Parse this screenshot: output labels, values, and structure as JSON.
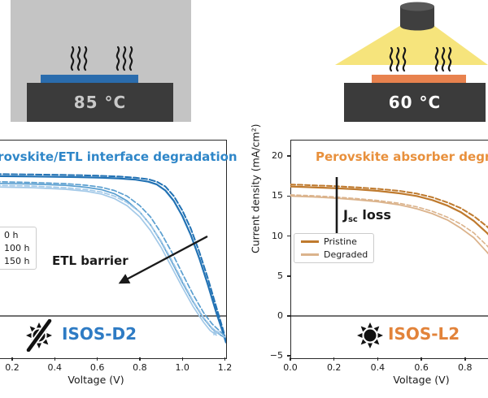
{
  "scene": {
    "heat_setup": {
      "temp": "85 °C",
      "panel_bg": "#c4c4c4",
      "block_color": "#3b3b3b",
      "cell_layer_color": "#2a6cad",
      "icon": "heat-waves-icon"
    },
    "light_setup": {
      "temp": "60 °C",
      "block_color": "#3b3b3b",
      "cell_layer_color": "#e8824e",
      "light_cone_color": "#f6e47c",
      "icons": [
        "lamp-icon",
        "heat-waves-icon"
      ]
    }
  },
  "chart_data": [
    {
      "type": "line",
      "title": "Perovskite/ETL interface degradation",
      "title_color": "#2e86c8",
      "xlabel": "Voltage (V)",
      "ylabel": "",
      "xtick_labels": [
        "0.2",
        "0.4",
        "0.6",
        "0.8",
        "1.0",
        "1.2"
      ],
      "xticks": [
        0.2,
        0.4,
        0.6,
        0.8,
        1.0,
        1.2
      ],
      "xlim_visible": [
        0.14,
        1.21
      ],
      "ylim": [
        -5,
        22
      ],
      "grid": false,
      "annotation": "ETL barrier",
      "badge": "ISOS-D2",
      "badge_icon": "crossed-sun-dark-storage-icon",
      "legend_position": "center left",
      "legend": [
        {
          "label": "0 h",
          "color": "#2272b4"
        },
        {
          "label": "100 h",
          "color": "#5b9fd0"
        },
        {
          "label": "150 h",
          "color": "#a3c9e8"
        }
      ],
      "series": [
        {
          "name": "0 h forward",
          "color": "#2272b4",
          "dash": "",
          "width": 2.2,
          "points": [
            [
              0.12,
              17.5
            ],
            [
              0.3,
              17.45
            ],
            [
              0.5,
              17.38
            ],
            [
              0.6,
              17.32
            ],
            [
              0.7,
              17.22
            ],
            [
              0.78,
              17.05
            ],
            [
              0.84,
              16.8
            ],
            [
              0.88,
              16.45
            ],
            [
              0.92,
              15.7
            ],
            [
              0.96,
              14.4
            ],
            [
              1.0,
              12.5
            ],
            [
              1.04,
              10.1
            ],
            [
              1.08,
              7.2
            ],
            [
              1.12,
              3.9
            ],
            [
              1.16,
              0.4
            ],
            [
              1.19,
              -2.0
            ],
            [
              1.205,
              -3.3
            ]
          ]
        },
        {
          "name": "0 h reverse",
          "color": "#2272b4",
          "dash": "7,3",
          "width": 2,
          "points": [
            [
              0.12,
              17.75
            ],
            [
              0.3,
              17.7
            ],
            [
              0.5,
              17.62
            ],
            [
              0.6,
              17.55
            ],
            [
              0.7,
              17.45
            ],
            [
              0.78,
              17.3
            ],
            [
              0.84,
              17.1
            ],
            [
              0.88,
              16.8
            ],
            [
              0.92,
              16.2
            ],
            [
              0.96,
              15.0
            ],
            [
              1.0,
              13.2
            ],
            [
              1.04,
              10.9
            ],
            [
              1.08,
              8.0
            ],
            [
              1.12,
              4.7
            ],
            [
              1.16,
              1.1
            ],
            [
              1.19,
              -1.6
            ],
            [
              1.205,
              -3.1
            ]
          ]
        },
        {
          "name": "100 h forward",
          "color": "#5b9fd0",
          "dash": "",
          "width": 1.7,
          "points": [
            [
              0.12,
              16.6
            ],
            [
              0.3,
              16.5
            ],
            [
              0.45,
              16.35
            ],
            [
              0.55,
              16.1
            ],
            [
              0.62,
              15.8
            ],
            [
              0.68,
              15.3
            ],
            [
              0.74,
              14.4
            ],
            [
              0.8,
              13.0
            ],
            [
              0.85,
              11.4
            ],
            [
              0.9,
              9.3
            ],
            [
              0.95,
              6.8
            ],
            [
              1.0,
              4.2
            ],
            [
              1.05,
              1.8
            ],
            [
              1.1,
              -0.3
            ],
            [
              1.14,
              -1.6
            ],
            [
              1.18,
              -2.4
            ],
            [
              1.2,
              -2.7
            ]
          ]
        },
        {
          "name": "100 h reverse",
          "color": "#5b9fd0",
          "dash": "6,3",
          "width": 1.7,
          "points": [
            [
              0.12,
              16.8
            ],
            [
              0.3,
              16.7
            ],
            [
              0.45,
              16.55
            ],
            [
              0.55,
              16.35
            ],
            [
              0.62,
              16.1
            ],
            [
              0.68,
              15.7
            ],
            [
              0.74,
              15.0
            ],
            [
              0.8,
              13.8
            ],
            [
              0.85,
              12.4
            ],
            [
              0.9,
              10.4
            ],
            [
              0.95,
              8.0
            ],
            [
              1.0,
              5.3
            ],
            [
              1.05,
              2.7
            ],
            [
              1.1,
              0.4
            ],
            [
              1.14,
              -1.0
            ],
            [
              1.18,
              -2.0
            ],
            [
              1.2,
              -2.5
            ]
          ]
        },
        {
          "name": "150 h forward",
          "color": "#a3c9e8",
          "dash": "",
          "width": 1.7,
          "points": [
            [
              0.12,
              16.15
            ],
            [
              0.3,
              16.05
            ],
            [
              0.45,
              15.85
            ],
            [
              0.55,
              15.6
            ],
            [
              0.62,
              15.25
            ],
            [
              0.68,
              14.7
            ],
            [
              0.74,
              13.8
            ],
            [
              0.8,
              12.4
            ],
            [
              0.85,
              10.7
            ],
            [
              0.9,
              8.6
            ],
            [
              0.95,
              6.1
            ],
            [
              1.0,
              3.6
            ],
            [
              1.05,
              1.2
            ],
            [
              1.1,
              -0.8
            ],
            [
              1.13,
              -1.8
            ],
            [
              1.16,
              -2.4
            ]
          ]
        },
        {
          "name": "150 h reverse",
          "color": "#a3c9e8",
          "dash": "6,3",
          "width": 1.7,
          "points": [
            [
              0.12,
              16.35
            ],
            [
              0.3,
              16.25
            ],
            [
              0.45,
              16.05
            ],
            [
              0.55,
              15.8
            ],
            [
              0.62,
              15.5
            ],
            [
              0.68,
              15.0
            ],
            [
              0.74,
              14.2
            ],
            [
              0.8,
              13.0
            ],
            [
              0.85,
              11.4
            ],
            [
              0.9,
              9.4
            ],
            [
              0.95,
              7.0
            ],
            [
              1.0,
              4.4
            ],
            [
              1.05,
              1.9
            ],
            [
              1.1,
              -0.2
            ],
            [
              1.14,
              -1.5
            ],
            [
              1.18,
              -2.3
            ],
            [
              1.2,
              -2.6
            ]
          ]
        }
      ]
    },
    {
      "type": "line",
      "title": "Perovskite absorber degradation",
      "title_color": "#e8903c",
      "xlabel": "Voltage (V)",
      "ylabel": "Current density (mA/cm²)",
      "xtick_labels": [
        "0.0",
        "0.2",
        "0.4",
        "0.6",
        "0.8"
      ],
      "xticks": [
        0.0,
        0.2,
        0.4,
        0.6,
        0.8
      ],
      "ytick_labels": [
        "20",
        "15",
        "10",
        "5",
        "0",
        "−5"
      ],
      "yticks": [
        20,
        15,
        10,
        5,
        0,
        -5
      ],
      "xlim_visible": [
        0.0,
        0.905
      ],
      "ylim": [
        -5,
        22
      ],
      "grid": false,
      "annotation_j": "J",
      "annotation_sub": "sc",
      "annotation_rest": " loss",
      "badge": "ISOS-L2",
      "badge_icon": "sun-light-soaking-icon",
      "legend_position": "center left",
      "legend": [
        {
          "label": "Pristine",
          "color": "#bf7a2e"
        },
        {
          "label": "Degraded",
          "color": "#dbb38c"
        }
      ],
      "series": [
        {
          "name": "Pristine forward",
          "color": "#bf7a2e",
          "dash": "",
          "width": 2.2,
          "points": [
            [
              0,
              16.2
            ],
            [
              0.1,
              16.1
            ],
            [
              0.2,
              16.0
            ],
            [
              0.3,
              15.85
            ],
            [
              0.4,
              15.65
            ],
            [
              0.5,
              15.35
            ],
            [
              0.58,
              15.0
            ],
            [
              0.65,
              14.5
            ],
            [
              0.72,
              13.8
            ],
            [
              0.78,
              13.0
            ],
            [
              0.84,
              11.9
            ],
            [
              0.9,
              10.4
            ],
            [
              0.93,
              9.5
            ]
          ]
        },
        {
          "name": "Pristine reverse",
          "color": "#bf7a2e",
          "dash": "6,3",
          "width": 2,
          "points": [
            [
              0,
              16.45
            ],
            [
              0.1,
              16.35
            ],
            [
              0.2,
              16.25
            ],
            [
              0.3,
              16.1
            ],
            [
              0.4,
              15.9
            ],
            [
              0.5,
              15.65
            ],
            [
              0.58,
              15.3
            ],
            [
              0.65,
              14.85
            ],
            [
              0.72,
              14.2
            ],
            [
              0.78,
              13.5
            ],
            [
              0.84,
              12.5
            ],
            [
              0.9,
              11.2
            ],
            [
              0.93,
              10.4
            ]
          ]
        },
        {
          "name": "Degraded forward",
          "color": "#dbb38c",
          "dash": "",
          "width": 1.8,
          "points": [
            [
              0,
              15.0
            ],
            [
              0.1,
              14.9
            ],
            [
              0.2,
              14.75
            ],
            [
              0.3,
              14.55
            ],
            [
              0.4,
              14.3
            ],
            [
              0.5,
              13.9
            ],
            [
              0.58,
              13.4
            ],
            [
              0.65,
              12.8
            ],
            [
              0.72,
              12.0
            ],
            [
              0.78,
              11.0
            ],
            [
              0.84,
              9.8
            ],
            [
              0.9,
              8.0
            ],
            [
              0.93,
              7.0
            ]
          ]
        },
        {
          "name": "Degraded reverse",
          "color": "#dbb38c",
          "dash": "5,3",
          "width": 1.6,
          "points": [
            [
              0,
              15.15
            ],
            [
              0.1,
              15.05
            ],
            [
              0.2,
              14.9
            ],
            [
              0.3,
              14.7
            ],
            [
              0.4,
              14.45
            ],
            [
              0.5,
              14.1
            ],
            [
              0.58,
              13.65
            ],
            [
              0.65,
              13.1
            ],
            [
              0.72,
              12.35
            ],
            [
              0.78,
              11.5
            ],
            [
              0.84,
              10.4
            ],
            [
              0.9,
              8.8
            ],
            [
              0.93,
              7.9
            ]
          ]
        }
      ]
    }
  ]
}
